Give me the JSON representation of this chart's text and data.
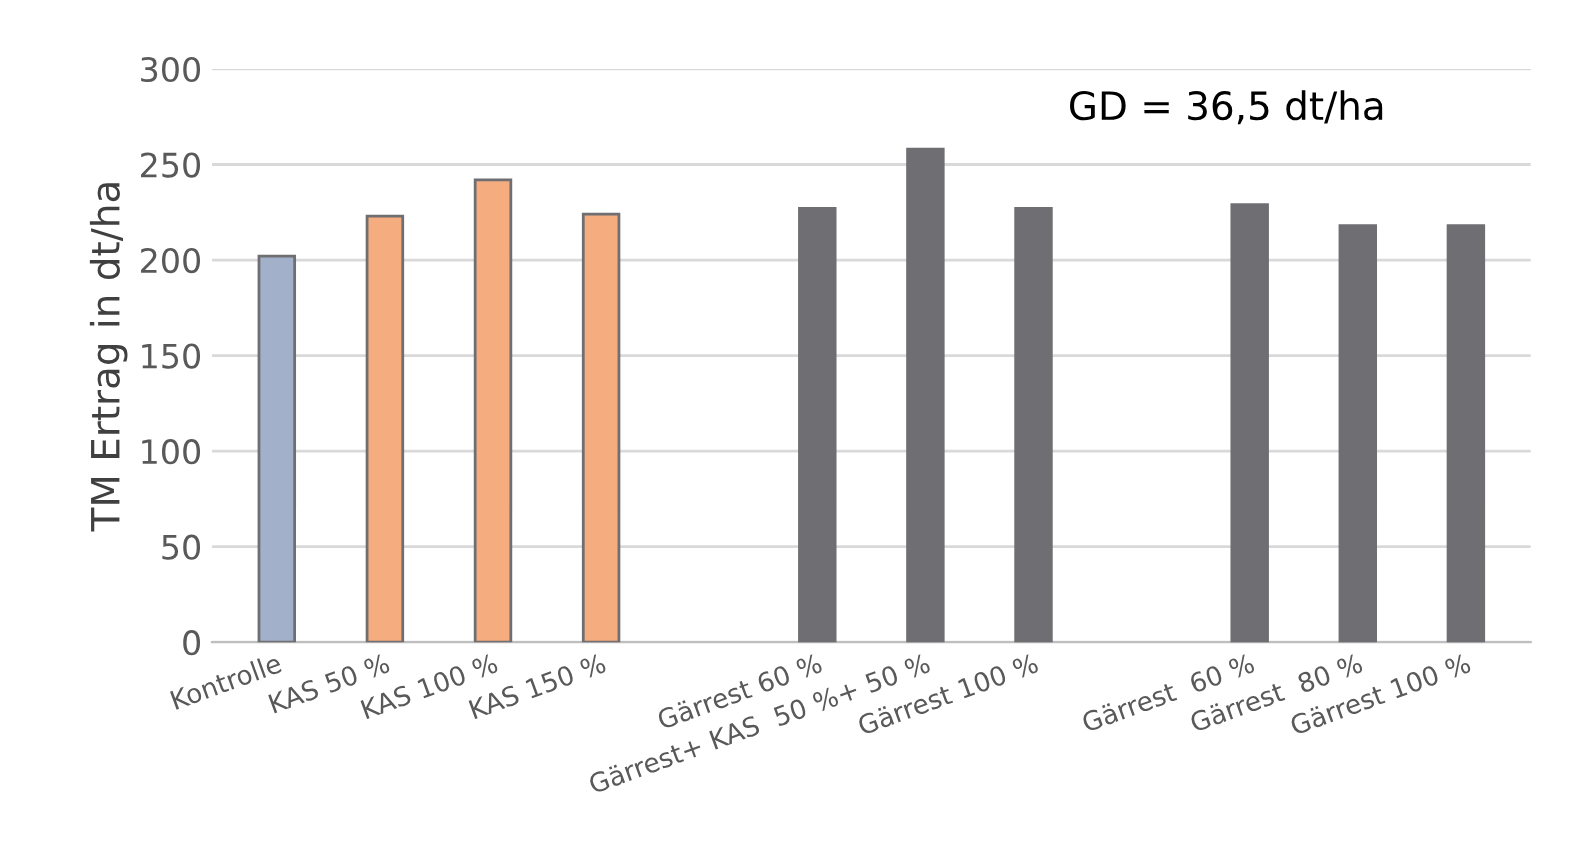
{
  "chart_data": {
    "type": "bar",
    "ylabel": "TM Ertrag in dt/ha",
    "categories": [
      "Kontrolle",
      "KAS 50 %",
      "KAS 100 %",
      "KAS 150 %",
      null,
      "Gärrest 60 %",
      "Gärrest+ KAS  50 %+ 50 %",
      "Gärrest 100 %",
      null,
      "Gärrest  60 %",
      "Gärrest  80 %",
      "Gärrest 100 %"
    ],
    "values": [
      202,
      223,
      242,
      224,
      null,
      227,
      258,
      227,
      null,
      229,
      218,
      218
    ],
    "colors": [
      "#a2b1c9",
      "#f5ac7e",
      "#f5ac7e",
      "#f5ac7e",
      null,
      "#6f6e72",
      "#6f6e72",
      "#6f6e72",
      null,
      "#6f6e72",
      "#6f6e72",
      "#6f6e72"
    ],
    "ylim": [
      0,
      300
    ],
    "yticks": [
      0,
      50,
      100,
      150,
      200,
      250,
      300
    ],
    "grid": "y",
    "annotations": [
      "GD = 36,5 dt/ha"
    ]
  }
}
